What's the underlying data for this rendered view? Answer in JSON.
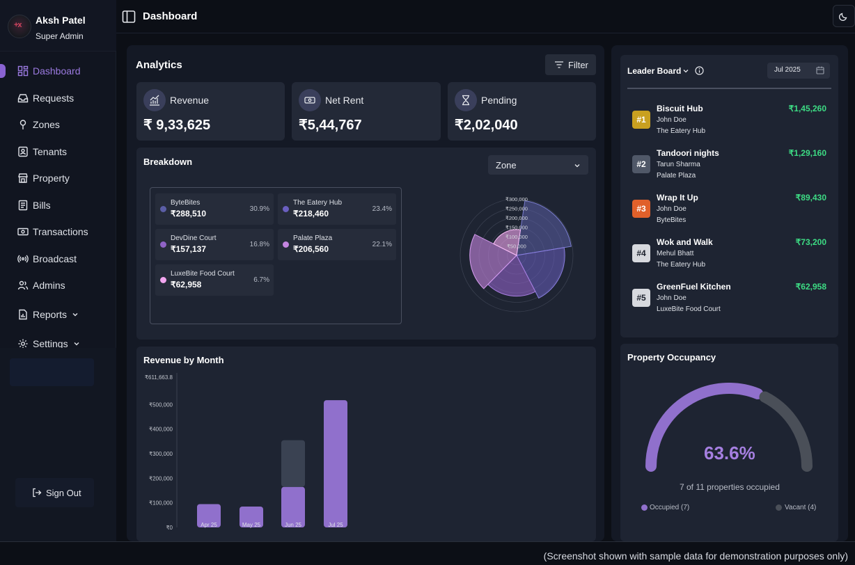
{
  "user": {
    "name": "Aksh Patel",
    "role": "Super Admin"
  },
  "topbar": {
    "title": "Dashboard"
  },
  "nav": [
    {
      "label": "Dashboard",
      "icon": "dashboard-icon",
      "active": true
    },
    {
      "label": "Requests",
      "icon": "inbox-icon"
    },
    {
      "label": "Zones",
      "icon": "map-pin-icon"
    },
    {
      "label": "Tenants",
      "icon": "id-card-icon"
    },
    {
      "label": "Property",
      "icon": "store-icon"
    },
    {
      "label": "Bills",
      "icon": "receipt-icon"
    },
    {
      "label": "Transactions",
      "icon": "banknote-icon"
    },
    {
      "label": "Broadcast",
      "icon": "broadcast-icon"
    },
    {
      "label": "Admins",
      "icon": "users-icon"
    },
    {
      "label": "Reports",
      "icon": "file-chart-icon"
    },
    {
      "label": "Settings",
      "icon": "gear-icon"
    }
  ],
  "signout": "Sign Out",
  "analytics": {
    "title": "Analytics",
    "filter_label": "Filter",
    "stats": [
      {
        "label": "Revenue",
        "value": "₹ 9,33,625",
        "icon": "chart-icon"
      },
      {
        "label": "Net Rent",
        "value": "₹5,44,767",
        "icon": "cash-icon"
      },
      {
        "label": "Pending",
        "value": "₹2,02,040",
        "icon": "hourglass-icon"
      }
    ]
  },
  "breakdown": {
    "title": "Breakdown",
    "select_value": "Zone",
    "items": [
      {
        "name": "ByteBites",
        "value": "₹288,510",
        "pct": "30.9%",
        "color": "#5b5ea6"
      },
      {
        "name": "The Eatery Hub",
        "value": "₹218,460",
        "pct": "23.4%",
        "color": "#6a5fc0"
      },
      {
        "name": "DevDine Court",
        "value": "₹157,137",
        "pct": "16.8%",
        "color": "#8f63c6"
      },
      {
        "name": "Palate Plaza",
        "value": "₹206,560",
        "pct": "22.1%",
        "color": "#c485e0"
      },
      {
        "name": "LuxeBite Food Court",
        "value": "₹62,958",
        "pct": "6.7%",
        "color": "#f2a6f0"
      }
    ],
    "radial_ticks": [
      "₹300,000",
      "₹250,000",
      "₹200,000",
      "₹150,000",
      "₹100,000",
      "₹50,000"
    ]
  },
  "revenue_by_month": {
    "title": "Revenue by Month"
  },
  "chart_data": {
    "type": "bar",
    "title": "Revenue by Month",
    "categories": [
      "Apr 25",
      "May 25",
      "Jun 25",
      "Jul 25"
    ],
    "series": [
      {
        "values": [
          95000,
          85000,
          165000,
          518000
        ],
        "color": "#9070cc"
      },
      {
        "values": [
          0,
          0,
          190000,
          0
        ],
        "color": "#3a4252"
      }
    ],
    "ylim": [
      0,
      611663.8
    ],
    "yticks": [
      "₹0",
      "₹100,000",
      "₹200,000",
      "₹300,000",
      "₹400,000",
      "₹500,000",
      "₹611,663.8"
    ],
    "ytick_values": [
      0,
      100000,
      200000,
      300000,
      400000,
      500000,
      611663.8
    ],
    "xlabel": "",
    "ylabel": "",
    "grid": false
  },
  "leaderboard": {
    "title": "Leader Board",
    "date": "Jul 2025",
    "rows": [
      {
        "rank": "#1",
        "name": "Biscuit Hub",
        "person": "John Doe",
        "zone": "The Eatery Hub",
        "amount": "₹1,45,260",
        "color": "#c9a020"
      },
      {
        "rank": "#2",
        "name": "Tandoori nights",
        "person": "Tarun Sharma",
        "zone": "Palate Plaza",
        "amount": "₹1,29,160",
        "color": "#505868"
      },
      {
        "rank": "#3",
        "name": "Wrap It Up",
        "person": "John Doe",
        "zone": "ByteBites",
        "amount": "₹89,430",
        "color": "#e0602a"
      },
      {
        "rank": "#4",
        "name": "Wok and Walk",
        "person": "Mehul Bhatt",
        "zone": "The Eatery Hub",
        "amount": "₹73,200",
        "color": "#d7d9de"
      },
      {
        "rank": "#5",
        "name": "GreenFuel Kitchen",
        "person": "John Doe",
        "zone": "LuxeBite Food Court",
        "amount": "₹62,958",
        "color": "#d7d9de"
      }
    ]
  },
  "occupancy": {
    "title": "Property Occupancy",
    "percent": "63.6%",
    "fraction": 0.636,
    "subtitle": "7 of 11 properties occupied",
    "occupied_label": "Occupied (7)",
    "vacant_label": "Vacant (4)",
    "occupied_color": "#9070cc",
    "vacant_color": "#4a4f58"
  },
  "footer": "(Screenshot shown with sample data for demonstration purposes only)"
}
